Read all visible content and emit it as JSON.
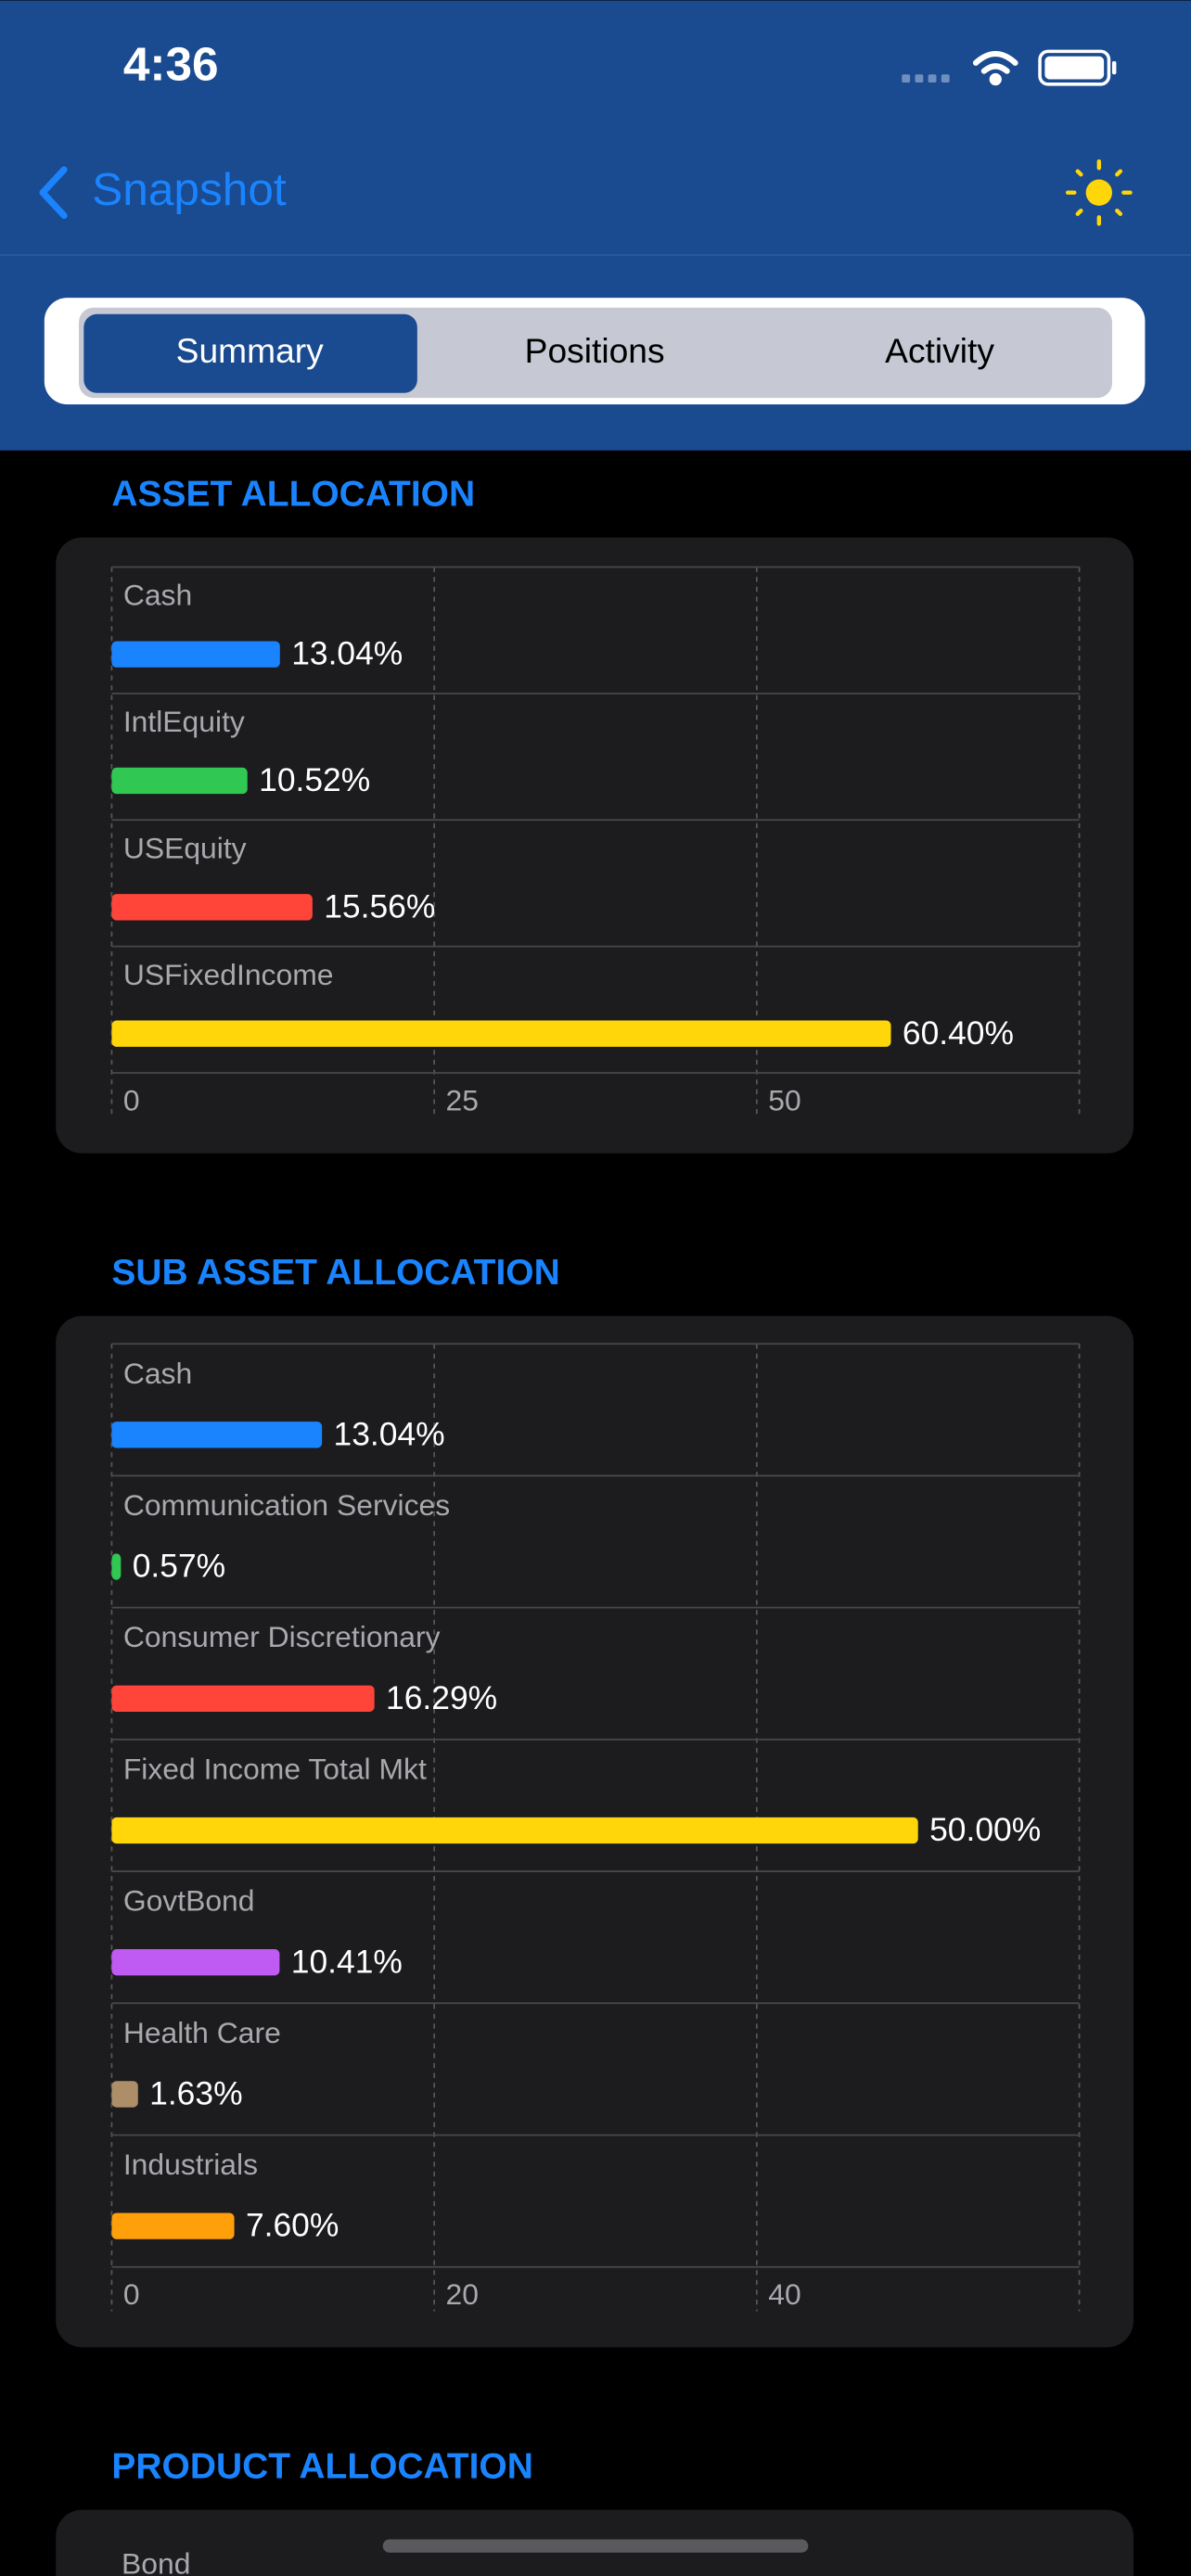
{
  "status": {
    "time": "4:36"
  },
  "nav": {
    "back": "Snapshot"
  },
  "tabs": [
    "Summary",
    "Positions",
    "Activity"
  ],
  "chart_data": [
    {
      "type": "bar",
      "orientation": "horizontal",
      "title": "ASSET ALLOCATION",
      "categories": [
        "Cash",
        "IntlEquity",
        "USEquity",
        "USFixedIncome"
      ],
      "values": [
        13.04,
        10.52,
        15.56,
        60.4
      ],
      "value_labels": [
        "13.04%",
        "10.52%",
        "15.56%",
        "60.40%"
      ],
      "colors": [
        "#1a84ff",
        "#30c752",
        "#ff453a",
        "#ffd60a"
      ],
      "xlim": [
        0,
        75
      ],
      "xticks": [
        0,
        25,
        50
      ],
      "grid": true
    },
    {
      "type": "bar",
      "orientation": "horizontal",
      "title": "SUB ASSET ALLOCATION",
      "categories": [
        "Cash",
        "Communication Services",
        "Consumer Discretionary",
        "Fixed Income Total Mkt",
        "GovtBond",
        "Health Care",
        "Industrials"
      ],
      "values": [
        13.04,
        0.57,
        16.29,
        50.0,
        10.41,
        1.63,
        7.6
      ],
      "value_labels": [
        "13.04%",
        "0.57%",
        "16.29%",
        "50.00%",
        "10.41%",
        "1.63%",
        "7.60%"
      ],
      "colors": [
        "#1a84ff",
        "#30c752",
        "#ff453a",
        "#ffd60a",
        "#bf5af2",
        "#ac8e68",
        "#ff9f0a"
      ],
      "xlim": [
        0,
        60
      ],
      "xticks": [
        0,
        20,
        40
      ],
      "grid": true
    }
  ],
  "product": {
    "title": "PRODUCT ALLOCATION",
    "categories": [
      "Bond"
    ]
  }
}
